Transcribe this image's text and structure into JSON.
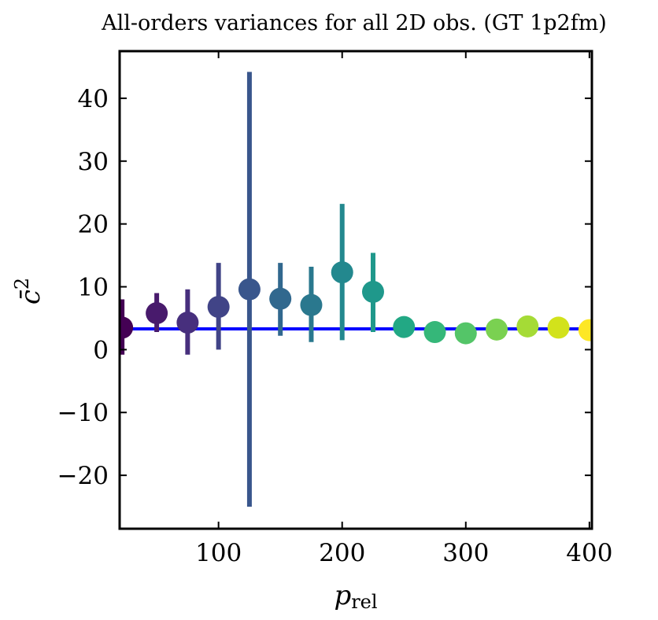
{
  "chart_data": {
    "type": "scatter",
    "title": "All-orders variances for all 2D obs. (GT 1p2fm)",
    "xlabel": "p",
    "xlabel_sub": "rel",
    "ylabel": "c̄",
    "ylabel_sup": "2",
    "xlim": [
      20,
      402
    ],
    "ylim": [
      -28.5,
      47.5
    ],
    "xticks": [
      100,
      200,
      300,
      400
    ],
    "yticks": [
      -20,
      -10,
      0,
      10,
      20,
      30,
      40
    ],
    "xtick_labels": [
      "100",
      "200",
      "300",
      "400"
    ],
    "ytick_labels": [
      "−20",
      "−10",
      "0",
      "10",
      "20",
      "30",
      "40"
    ],
    "reference_line": {
      "y": 3.3,
      "color": "#0000ff"
    },
    "points": [
      {
        "x": 22,
        "y": 3.5,
        "err_low": -0.8,
        "err_high": 8.0,
        "color": "#440154"
      },
      {
        "x": 50,
        "y": 5.8,
        "err_low": 2.8,
        "err_high": 9.0,
        "color": "#481a6c"
      },
      {
        "x": 75,
        "y": 4.3,
        "err_low": -0.8,
        "err_high": 9.6,
        "color": "#472f7d"
      },
      {
        "x": 100,
        "y": 6.8,
        "err_low": 0.0,
        "err_high": 13.8,
        "color": "#414487"
      },
      {
        "x": 125,
        "y": 9.6,
        "err_low": -25.0,
        "err_high": 44.2,
        "color": "#39568c"
      },
      {
        "x": 150,
        "y": 8.1,
        "err_low": 2.2,
        "err_high": 13.8,
        "color": "#31688e"
      },
      {
        "x": 175,
        "y": 7.1,
        "err_low": 1.2,
        "err_high": 13.2,
        "color": "#2a788e"
      },
      {
        "x": 200,
        "y": 12.3,
        "err_low": 1.5,
        "err_high": 23.2,
        "color": "#23888e"
      },
      {
        "x": 225,
        "y": 9.2,
        "err_low": 2.8,
        "err_high": 15.4,
        "color": "#1f988b"
      },
      {
        "x": 250,
        "y": 3.6,
        "err_low": null,
        "err_high": null,
        "color": "#22a884"
      },
      {
        "x": 275,
        "y": 2.8,
        "err_low": null,
        "err_high": null,
        "color": "#35b779"
      },
      {
        "x": 300,
        "y": 2.6,
        "err_low": null,
        "err_high": null,
        "color": "#54c568"
      },
      {
        "x": 325,
        "y": 3.2,
        "err_low": null,
        "err_high": null,
        "color": "#7ad151"
      },
      {
        "x": 350,
        "y": 3.7,
        "err_low": null,
        "err_high": null,
        "color": "#a5db36"
      },
      {
        "x": 375,
        "y": 3.5,
        "err_low": null,
        "err_high": null,
        "color": "#d2e21b"
      },
      {
        "x": 400,
        "y": 3.1,
        "err_low": null,
        "err_high": null,
        "color": "#fde725"
      }
    ],
    "grid": false,
    "legend": "none"
  }
}
